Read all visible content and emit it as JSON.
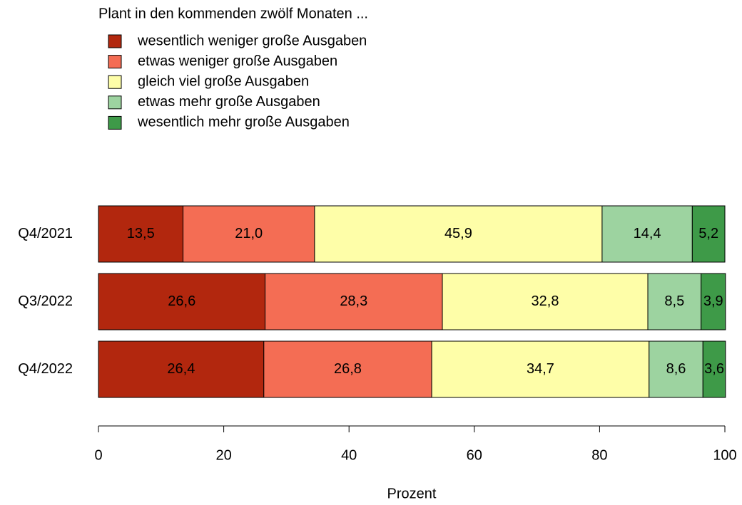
{
  "chart_data": {
    "type": "stacked-barh",
    "legend_title": "Plant in den kommenden zwölf Monaten ...",
    "xlabel": "Prozent",
    "categories": [
      "Q4/2021",
      "Q3/2022",
      "Q4/2022"
    ],
    "series": [
      {
        "name": "wesentlich weniger große Ausgaben",
        "color": "#b2270e",
        "values": [
          13.5,
          26.6,
          26.4
        ],
        "value_labels": [
          "13,5",
          "26,6",
          "26,4"
        ]
      },
      {
        "name": "etwas weniger große Ausgaben",
        "color": "#f46d54",
        "values": [
          21.0,
          28.3,
          26.8
        ],
        "value_labels": [
          "21,0",
          "28,3",
          "26,8"
        ]
      },
      {
        "name": "gleich viel große Ausgaben",
        "color": "#fefea8",
        "values": [
          45.9,
          32.8,
          34.7
        ],
        "value_labels": [
          "45,9",
          "32,8",
          "34,7"
        ]
      },
      {
        "name": "etwas mehr große Ausgaben",
        "color": "#9dd3a0",
        "values": [
          14.4,
          8.5,
          8.6
        ],
        "value_labels": [
          "14,4",
          "8,5",
          "8,6"
        ]
      },
      {
        "name": "wesentlich mehr große Ausgaben",
        "color": "#3e9a48",
        "values": [
          5.2,
          3.9,
          3.6
        ],
        "value_labels": [
          "5,2",
          "3,9",
          "3,6"
        ]
      }
    ],
    "xlim": [
      0,
      100
    ],
    "xticks": [
      0,
      20,
      40,
      60,
      80,
      100
    ]
  }
}
